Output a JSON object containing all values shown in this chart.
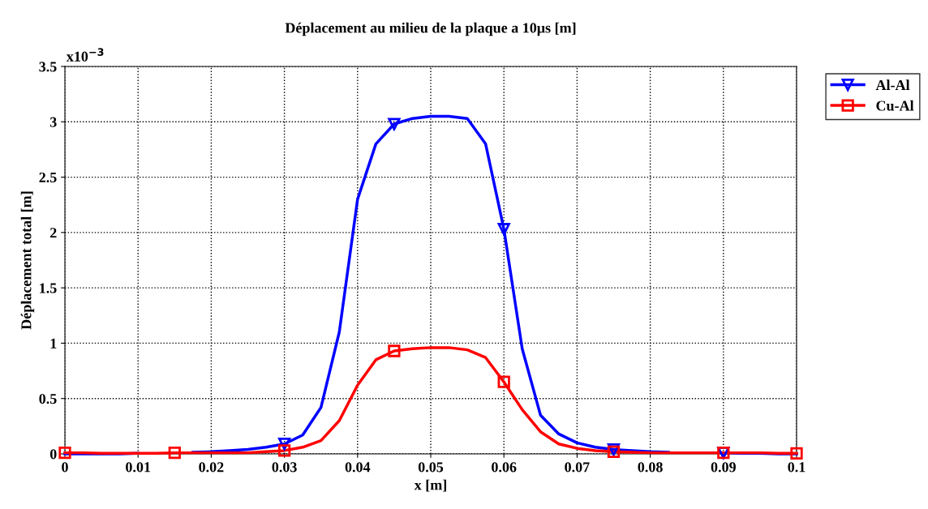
{
  "chart_data": {
    "type": "line",
    "title": "Déplacement au milieu de la plaque a 10μs [m]",
    "xlabel": "x [m]",
    "ylabel": "Déplacement total [m]",
    "annotations": [
      "x10$^{−3}$"
    ],
    "x": [
      0,
      0.0025,
      0.005,
      0.0075,
      0.01,
      0.0125,
      0.015,
      0.0175,
      0.02,
      0.0225,
      0.025,
      0.0275,
      0.03,
      0.0325,
      0.035,
      0.0375,
      0.04,
      0.0425,
      0.045,
      0.0475,
      0.05,
      0.0525,
      0.055,
      0.0575,
      0.06,
      0.0625,
      0.065,
      0.0675,
      0.07,
      0.0725,
      0.075,
      0.0775,
      0.08,
      0.0825,
      0.085,
      0.0875,
      0.09,
      0.0925,
      0.095,
      0.0975,
      0.1
    ],
    "series": [
      {
        "name": "Al-Al",
        "color": "#0000ff",
        "values": [
          0,
          0,
          0,
          0,
          0.005,
          null,
          null,
          0.015,
          0.02,
          0.03,
          0.04,
          0.06,
          0.09,
          0.17,
          0.42,
          1.1,
          2.3,
          2.8,
          2.98,
          3.03,
          3.05,
          3.05,
          3.03,
          2.8,
          2.03,
          0.95,
          0.35,
          0.18,
          0.1,
          0.06,
          0.04,
          0.03,
          0.02,
          0.015,
          null,
          null,
          0.01,
          0.005,
          0.005,
          0,
          0
        ]
      },
      {
        "name": "Cu-Al",
        "color": "#ff0000",
        "values": [
          0.01,
          0.01,
          0.005,
          0.005,
          0.005,
          0.005,
          0.01,
          0.01,
          0.01,
          0.01,
          0.01,
          0.02,
          0.03,
          0.06,
          0.12,
          0.3,
          0.62,
          0.85,
          0.93,
          0.95,
          0.96,
          0.96,
          0.94,
          0.87,
          0.65,
          0.4,
          0.2,
          0.09,
          0.05,
          0.03,
          0.02,
          0.015,
          0.01,
          0.01,
          0.01,
          0.01,
          0.01,
          0.01,
          0.01,
          0.005,
          0.005
        ]
      },
      {
        "type": "scatter",
        "color": "#0000ff",
        "marker": "triangle",
        "x": [
          0.03,
          0.045,
          0.06,
          0.075,
          0.09
        ],
        "values": [
          0.09,
          2.98,
          2.03,
          0.04,
          0.01
        ]
      },
      {
        "type": "scatter",
        "color": "#ff0000",
        "marker": "square",
        "x": [
          0,
          0.015,
          0.03,
          0.045,
          0.06,
          0.075,
          0.09,
          0.1
        ],
        "values": [
          0.01,
          0.01,
          0.03,
          0.93,
          0.65,
          0.02,
          0.01,
          0.005
        ]
      }
    ],
    "xlim": [
      0,
      0.1
    ],
    "xticks": [
      0,
      0.01,
      0.02,
      0.03,
      0.04,
      0.05,
      0.06,
      0.07,
      0.08,
      0.09,
      0.1
    ],
    "ylim": [
      0,
      3.5
    ],
    "yticks": [
      0,
      0.5,
      1,
      1.5,
      2,
      2.5,
      3,
      3.5
    ],
    "grid": true,
    "legend": "top right",
    "line_style": "solid"
  }
}
